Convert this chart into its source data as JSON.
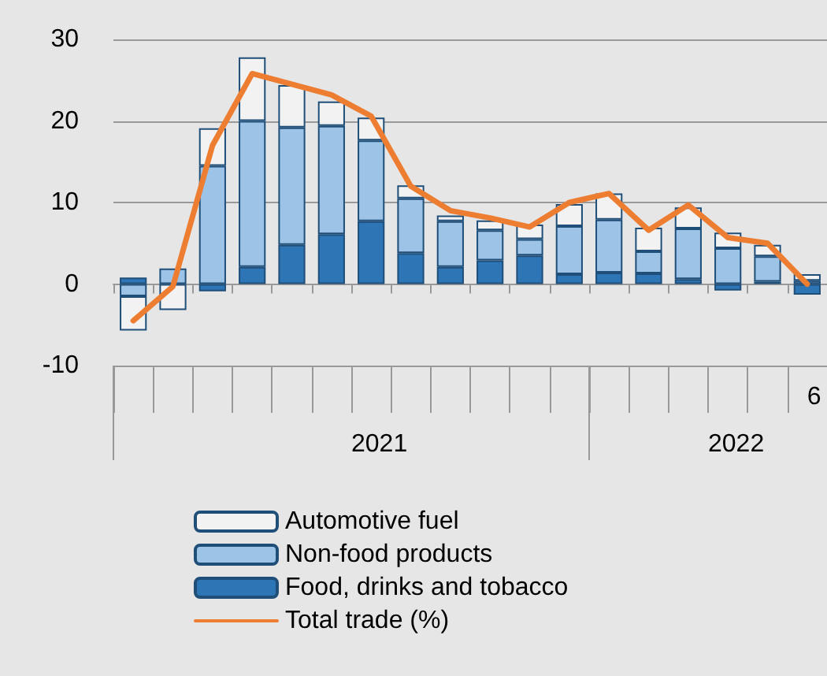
{
  "chart_data": {
    "type": "bar",
    "stacked": true,
    "categories": [
      null,
      null,
      null,
      null,
      null,
      null,
      null,
      null,
      null,
      null,
      null,
      null,
      null,
      null,
      null,
      null,
      null,
      "6"
    ],
    "annotations": [
      "2021",
      "2022"
    ],
    "series": [
      {
        "name": "Food, drinks and tobacco",
        "color": "#2e75b6",
        "values": [
          0.8,
          null,
          -0.9,
          2.1,
          4.8,
          6.1,
          7.7,
          3.8,
          2.1,
          2.9,
          3.5,
          1.2,
          1.4,
          1.3,
          0.6,
          -0.8,
          0.3,
          -1.3
        ]
      },
      {
        "name": "Non-food products",
        "color": "#9dc3e6",
        "values": [
          -1.5,
          1.9,
          14.5,
          17.9,
          14.4,
          13.3,
          9.9,
          6.7,
          5.6,
          3.7,
          2.0,
          5.9,
          6.5,
          2.7,
          6.2,
          4.4,
          3.1,
          0.4
        ]
      },
      {
        "name": "Automotive fuel",
        "color": "#f2f2f2",
        "values": [
          -4.2,
          -3.2,
          4.6,
          7.8,
          5.2,
          3.0,
          2.8,
          1.6,
          0.7,
          1.2,
          1.8,
          2.7,
          3.2,
          2.9,
          2.6,
          1.9,
          1.4,
          0.8
        ]
      },
      {
        "name": "Total trade (%)",
        "type": "line",
        "color": "#ed7d31",
        "values": [
          -4.5,
          -0.3,
          17,
          25.8,
          24.5,
          23.2,
          20.6,
          12.0,
          9.0,
          8.1,
          7.0,
          10.0,
          11.1,
          6.6,
          9.7,
          5.7,
          5.0,
          0
        ]
      }
    ],
    "ylim": [
      -10,
      30
    ],
    "yticks": [
      -10,
      0,
      10,
      20,
      30
    ],
    "grid": "y",
    "legend": "bottom",
    "marker": "none"
  }
}
